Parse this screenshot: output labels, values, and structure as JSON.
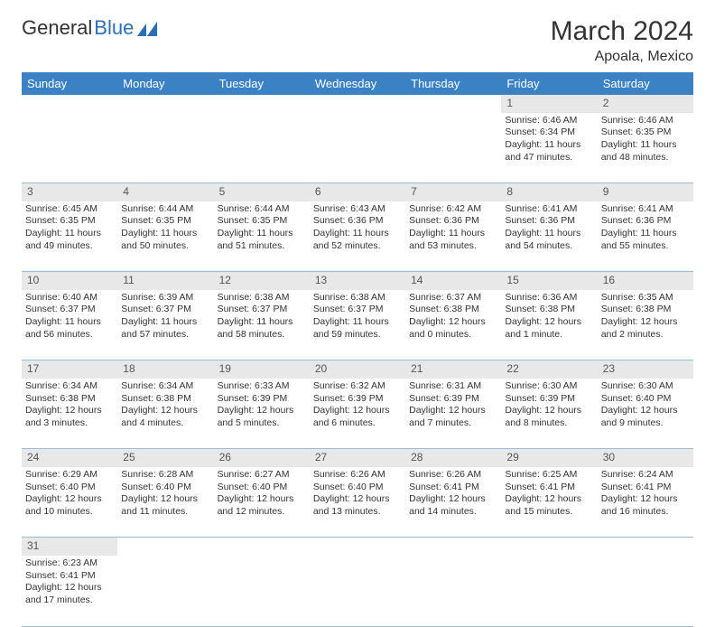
{
  "brand": {
    "part1": "General",
    "part2": "Blue"
  },
  "title": "March 2024",
  "location": "Apoala, Mexico",
  "header_bg": "#3b82c4",
  "daynum_bg": "#e8e8e8",
  "row_border": "#9bbbd8",
  "weekdays": [
    "Sunday",
    "Monday",
    "Tuesday",
    "Wednesday",
    "Thursday",
    "Friday",
    "Saturday"
  ],
  "weeks": [
    [
      null,
      null,
      null,
      null,
      null,
      {
        "n": "1",
        "sr": "6:46 AM",
        "ss": "6:34 PM",
        "dl": "11 hours and 47 minutes."
      },
      {
        "n": "2",
        "sr": "6:46 AM",
        "ss": "6:35 PM",
        "dl": "11 hours and 48 minutes."
      }
    ],
    [
      {
        "n": "3",
        "sr": "6:45 AM",
        "ss": "6:35 PM",
        "dl": "11 hours and 49 minutes."
      },
      {
        "n": "4",
        "sr": "6:44 AM",
        "ss": "6:35 PM",
        "dl": "11 hours and 50 minutes."
      },
      {
        "n": "5",
        "sr": "6:44 AM",
        "ss": "6:35 PM",
        "dl": "11 hours and 51 minutes."
      },
      {
        "n": "6",
        "sr": "6:43 AM",
        "ss": "6:36 PM",
        "dl": "11 hours and 52 minutes."
      },
      {
        "n": "7",
        "sr": "6:42 AM",
        "ss": "6:36 PM",
        "dl": "11 hours and 53 minutes."
      },
      {
        "n": "8",
        "sr": "6:41 AM",
        "ss": "6:36 PM",
        "dl": "11 hours and 54 minutes."
      },
      {
        "n": "9",
        "sr": "6:41 AM",
        "ss": "6:36 PM",
        "dl": "11 hours and 55 minutes."
      }
    ],
    [
      {
        "n": "10",
        "sr": "6:40 AM",
        "ss": "6:37 PM",
        "dl": "11 hours and 56 minutes."
      },
      {
        "n": "11",
        "sr": "6:39 AM",
        "ss": "6:37 PM",
        "dl": "11 hours and 57 minutes."
      },
      {
        "n": "12",
        "sr": "6:38 AM",
        "ss": "6:37 PM",
        "dl": "11 hours and 58 minutes."
      },
      {
        "n": "13",
        "sr": "6:38 AM",
        "ss": "6:37 PM",
        "dl": "11 hours and 59 minutes."
      },
      {
        "n": "14",
        "sr": "6:37 AM",
        "ss": "6:38 PM",
        "dl": "12 hours and 0 minutes."
      },
      {
        "n": "15",
        "sr": "6:36 AM",
        "ss": "6:38 PM",
        "dl": "12 hours and 1 minute."
      },
      {
        "n": "16",
        "sr": "6:35 AM",
        "ss": "6:38 PM",
        "dl": "12 hours and 2 minutes."
      }
    ],
    [
      {
        "n": "17",
        "sr": "6:34 AM",
        "ss": "6:38 PM",
        "dl": "12 hours and 3 minutes."
      },
      {
        "n": "18",
        "sr": "6:34 AM",
        "ss": "6:38 PM",
        "dl": "12 hours and 4 minutes."
      },
      {
        "n": "19",
        "sr": "6:33 AM",
        "ss": "6:39 PM",
        "dl": "12 hours and 5 minutes."
      },
      {
        "n": "20",
        "sr": "6:32 AM",
        "ss": "6:39 PM",
        "dl": "12 hours and 6 minutes."
      },
      {
        "n": "21",
        "sr": "6:31 AM",
        "ss": "6:39 PM",
        "dl": "12 hours and 7 minutes."
      },
      {
        "n": "22",
        "sr": "6:30 AM",
        "ss": "6:39 PM",
        "dl": "12 hours and 8 minutes."
      },
      {
        "n": "23",
        "sr": "6:30 AM",
        "ss": "6:40 PM",
        "dl": "12 hours and 9 minutes."
      }
    ],
    [
      {
        "n": "24",
        "sr": "6:29 AM",
        "ss": "6:40 PM",
        "dl": "12 hours and 10 minutes."
      },
      {
        "n": "25",
        "sr": "6:28 AM",
        "ss": "6:40 PM",
        "dl": "12 hours and 11 minutes."
      },
      {
        "n": "26",
        "sr": "6:27 AM",
        "ss": "6:40 PM",
        "dl": "12 hours and 12 minutes."
      },
      {
        "n": "27",
        "sr": "6:26 AM",
        "ss": "6:40 PM",
        "dl": "12 hours and 13 minutes."
      },
      {
        "n": "28",
        "sr": "6:26 AM",
        "ss": "6:41 PM",
        "dl": "12 hours and 14 minutes."
      },
      {
        "n": "29",
        "sr": "6:25 AM",
        "ss": "6:41 PM",
        "dl": "12 hours and 15 minutes."
      },
      {
        "n": "30",
        "sr": "6:24 AM",
        "ss": "6:41 PM",
        "dl": "12 hours and 16 minutes."
      }
    ],
    [
      {
        "n": "31",
        "sr": "6:23 AM",
        "ss": "6:41 PM",
        "dl": "12 hours and 17 minutes."
      },
      null,
      null,
      null,
      null,
      null,
      null
    ]
  ],
  "labels": {
    "sunrise": "Sunrise: ",
    "sunset": "Sunset: ",
    "daylight": "Daylight: "
  }
}
